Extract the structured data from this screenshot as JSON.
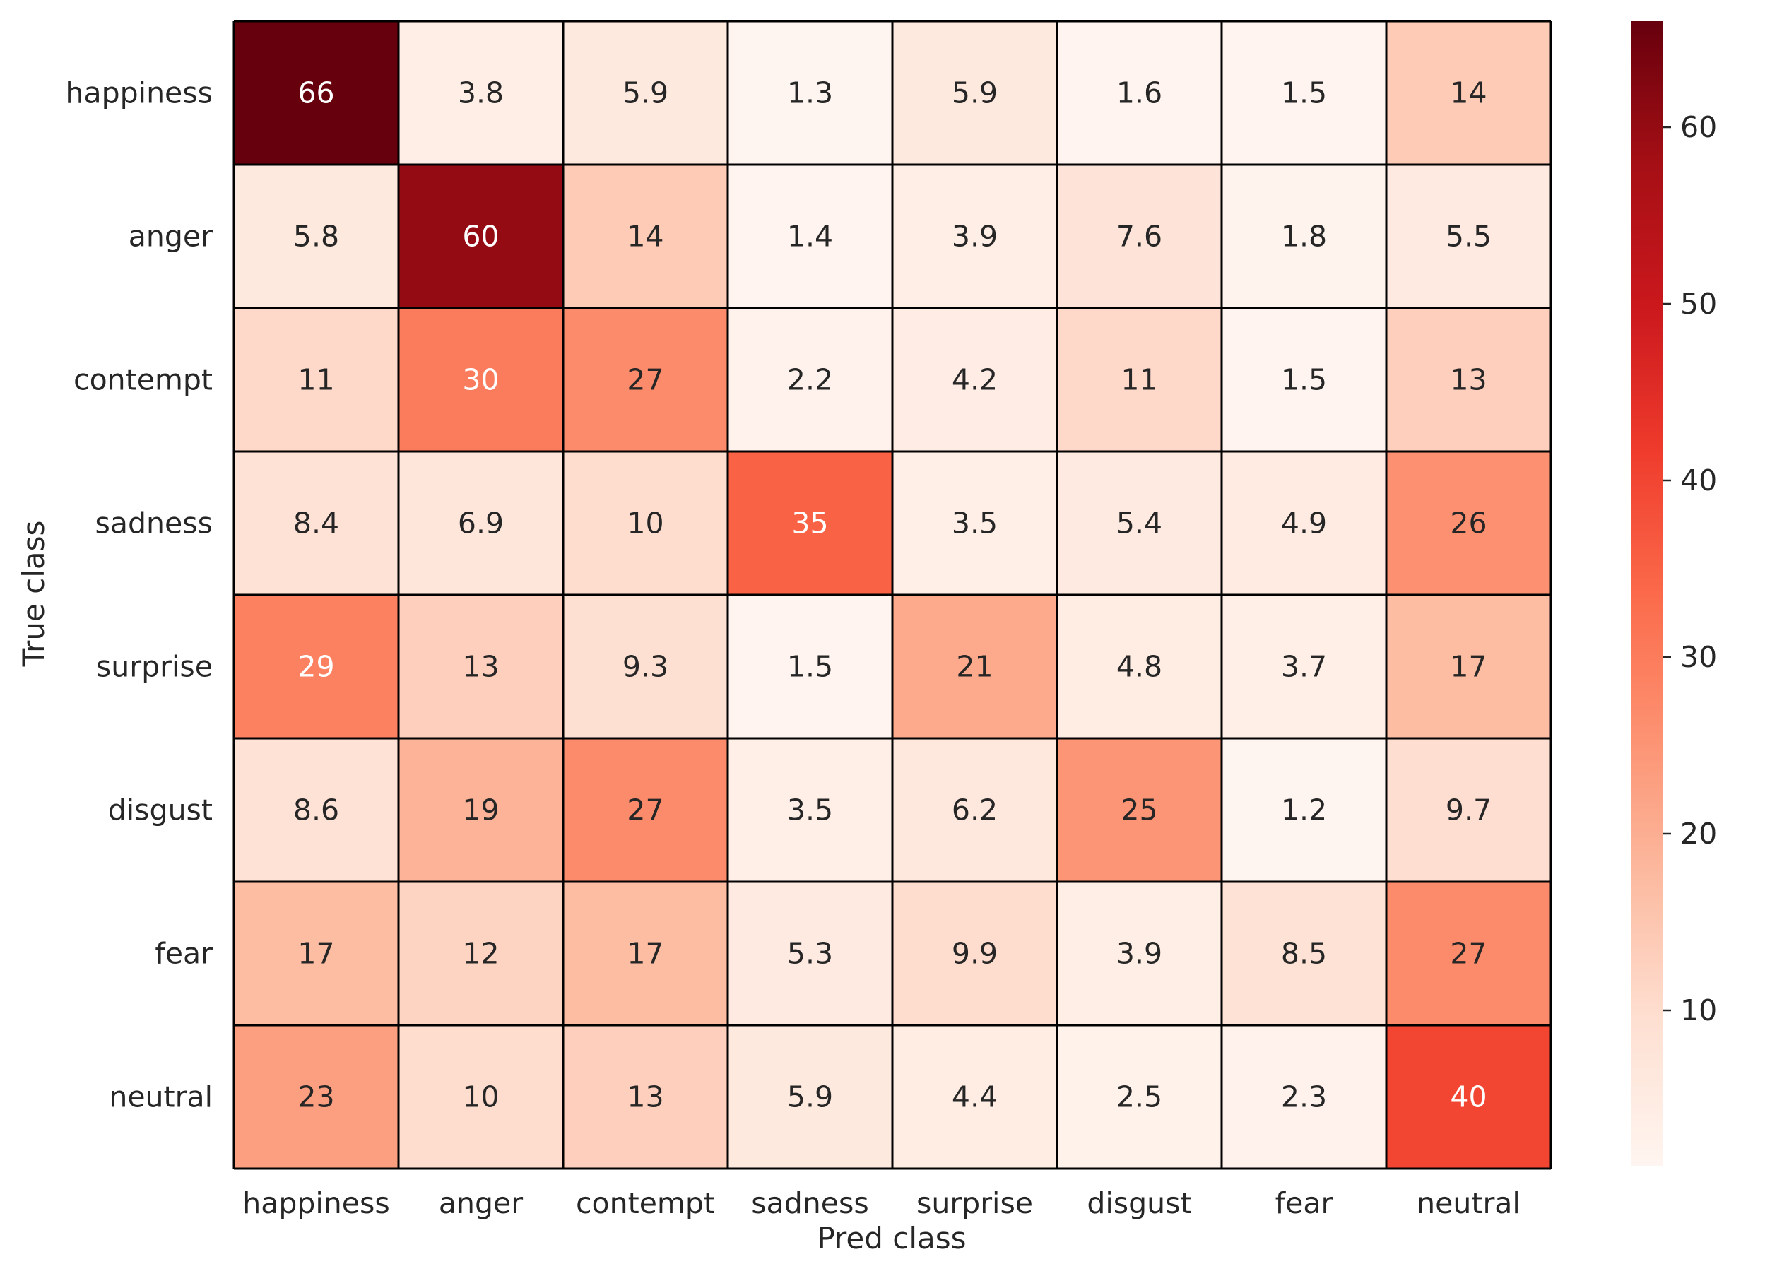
{
  "chart_data": {
    "type": "heatmap",
    "title": "",
    "xlabel": "Pred class",
    "ylabel": "True class",
    "x_categories": [
      "happiness",
      "anger",
      "contempt",
      "sadness",
      "surprise",
      "disgust",
      "fear",
      "neutral"
    ],
    "y_categories": [
      "happiness",
      "anger",
      "contempt",
      "sadness",
      "surprise",
      "disgust",
      "fear",
      "neutral"
    ],
    "values": [
      [
        66,
        3.8,
        5.9,
        1.3,
        5.9,
        1.6,
        1.5,
        14
      ],
      [
        5.8,
        60,
        14,
        1.4,
        3.9,
        7.6,
        1.8,
        5.5
      ],
      [
        11,
        30,
        27,
        2.2,
        4.2,
        11,
        1.5,
        13
      ],
      [
        8.4,
        6.9,
        10,
        35,
        3.5,
        5.4,
        4.9,
        26
      ],
      [
        29,
        13,
        9.3,
        1.5,
        21,
        4.8,
        3.7,
        17
      ],
      [
        8.6,
        19,
        27,
        3.5,
        6.2,
        25,
        1.2,
        9.7
      ],
      [
        17,
        12,
        17,
        5.3,
        9.9,
        3.9,
        8.5,
        27
      ],
      [
        23,
        10,
        13,
        5.9,
        4.4,
        2.5,
        2.3,
        40
      ]
    ],
    "colormap": "Reds",
    "color_range": [
      1.2,
      66
    ],
    "colorbar_ticks": [
      10,
      20,
      30,
      40,
      50,
      60
    ],
    "cell_borders": true,
    "grid": false,
    "legend": "colorbar-right"
  },
  "colors": {
    "cell_border": "#000000",
    "text_dark": "#262626",
    "text_light": "#ffffff"
  }
}
